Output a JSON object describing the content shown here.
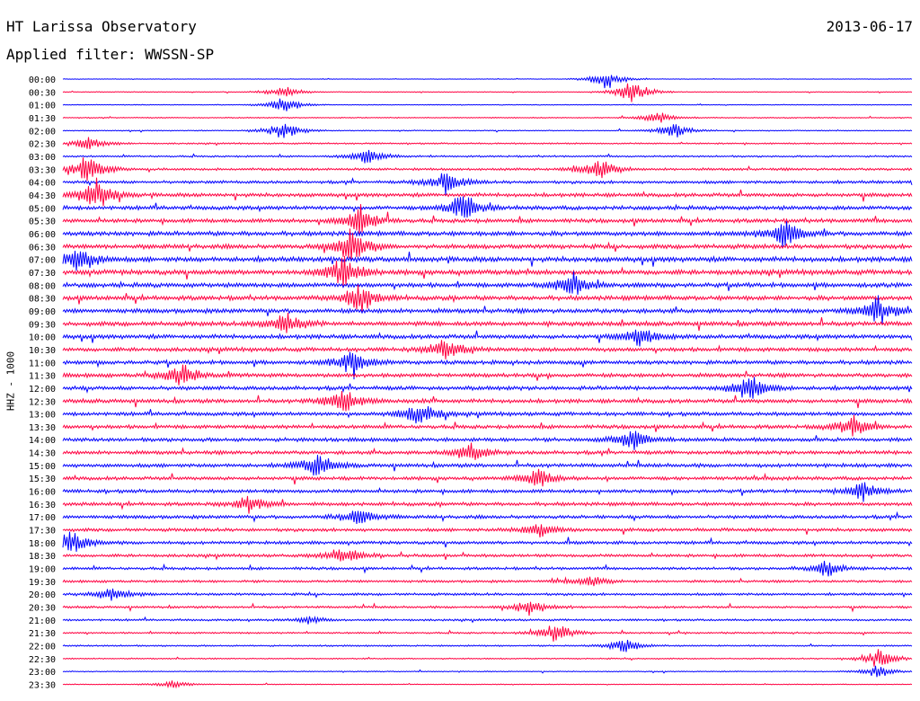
{
  "header": {
    "title": "HT Larissa Observatory",
    "date": "2013-06-17",
    "filter_label": "Applied filter: WWSSN-SP"
  },
  "chart_data": {
    "type": "line",
    "title": "HT Larissa Observatory",
    "ylabel": "HHZ - 1000",
    "row_labels": [
      "00:00",
      "00:30",
      "01:00",
      "01:30",
      "02:00",
      "02:30",
      "03:00",
      "03:30",
      "04:00",
      "04:30",
      "05:00",
      "05:30",
      "06:00",
      "06:30",
      "07:00",
      "07:30",
      "08:00",
      "08:30",
      "09:00",
      "09:30",
      "10:00",
      "10:30",
      "11:00",
      "11:30",
      "12:00",
      "12:30",
      "13:00",
      "13:30",
      "14:00",
      "14:30",
      "15:00",
      "15:30",
      "16:00",
      "16:30",
      "17:00",
      "17:30",
      "18:00",
      "18:30",
      "19:00",
      "19:30",
      "20:00",
      "20:30",
      "21:00",
      "21:30",
      "22:00",
      "22:30",
      "23:00",
      "23:30"
    ],
    "trace_colors": [
      "#0000ff",
      "#ff0040"
    ],
    "noise_level": [
      0.2,
      0.3,
      0.3,
      0.4,
      0.4,
      0.6,
      0.7,
      1.0,
      1.2,
      1.5,
      1.6,
      1.6,
      1.8,
      1.8,
      2.0,
      2.0,
      1.8,
      1.8,
      1.8,
      1.8,
      1.7,
      1.6,
      1.6,
      1.6,
      1.6,
      1.6,
      1.5,
      1.5,
      1.5,
      1.5,
      1.5,
      1.4,
      1.4,
      1.4,
      1.4,
      1.3,
      1.3,
      1.2,
      1.1,
      1.0,
      1.0,
      0.9,
      0.8,
      0.7,
      0.6,
      0.5,
      0.4,
      0.3
    ],
    "events": [
      {
        "row": 0,
        "pos": 0.64,
        "amp": 10
      },
      {
        "row": 1,
        "pos": 0.26,
        "amp": 6
      },
      {
        "row": 1,
        "pos": 0.67,
        "amp": 12
      },
      {
        "row": 2,
        "pos": 0.26,
        "amp": 8
      },
      {
        "row": 3,
        "pos": 0.7,
        "amp": 6
      },
      {
        "row": 4,
        "pos": 0.26,
        "amp": 10
      },
      {
        "row": 4,
        "pos": 0.72,
        "amp": 8
      },
      {
        "row": 5,
        "pos": 0.03,
        "amp": 8
      },
      {
        "row": 6,
        "pos": 0.36,
        "amp": 8
      },
      {
        "row": 7,
        "pos": 0.03,
        "amp": 14
      },
      {
        "row": 7,
        "pos": 0.63,
        "amp": 12
      },
      {
        "row": 8,
        "pos": 0.45,
        "amp": 12
      },
      {
        "row": 9,
        "pos": 0.04,
        "amp": 16
      },
      {
        "row": 10,
        "pos": 0.47,
        "amp": 14
      },
      {
        "row": 11,
        "pos": 0.35,
        "amp": 14
      },
      {
        "row": 12,
        "pos": 0.85,
        "amp": 14
      },
      {
        "row": 13,
        "pos": 0.34,
        "amp": 18
      },
      {
        "row": 14,
        "pos": 0.02,
        "amp": 14
      },
      {
        "row": 15,
        "pos": 0.33,
        "amp": 16
      },
      {
        "row": 16,
        "pos": 0.6,
        "amp": 12
      },
      {
        "row": 17,
        "pos": 0.35,
        "amp": 14
      },
      {
        "row": 18,
        "pos": 0.96,
        "amp": 14
      },
      {
        "row": 19,
        "pos": 0.26,
        "amp": 12
      },
      {
        "row": 20,
        "pos": 0.68,
        "amp": 10
      },
      {
        "row": 21,
        "pos": 0.45,
        "amp": 10
      },
      {
        "row": 22,
        "pos": 0.34,
        "amp": 12
      },
      {
        "row": 23,
        "pos": 0.14,
        "amp": 12
      },
      {
        "row": 24,
        "pos": 0.81,
        "amp": 14
      },
      {
        "row": 25,
        "pos": 0.33,
        "amp": 12
      },
      {
        "row": 26,
        "pos": 0.42,
        "amp": 12
      },
      {
        "row": 27,
        "pos": 0.93,
        "amp": 10
      },
      {
        "row": 28,
        "pos": 0.67,
        "amp": 12
      },
      {
        "row": 29,
        "pos": 0.48,
        "amp": 10
      },
      {
        "row": 30,
        "pos": 0.3,
        "amp": 12
      },
      {
        "row": 31,
        "pos": 0.56,
        "amp": 10
      },
      {
        "row": 32,
        "pos": 0.94,
        "amp": 10
      },
      {
        "row": 33,
        "pos": 0.22,
        "amp": 8
      },
      {
        "row": 34,
        "pos": 0.35,
        "amp": 10
      },
      {
        "row": 35,
        "pos": 0.56,
        "amp": 8
      },
      {
        "row": 36,
        "pos": 0.01,
        "amp": 12
      },
      {
        "row": 37,
        "pos": 0.33,
        "amp": 10
      },
      {
        "row": 38,
        "pos": 0.9,
        "amp": 8
      },
      {
        "row": 39,
        "pos": 0.62,
        "amp": 6
      },
      {
        "row": 40,
        "pos": 0.06,
        "amp": 8
      },
      {
        "row": 41,
        "pos": 0.55,
        "amp": 8
      },
      {
        "row": 42,
        "pos": 0.29,
        "amp": 4
      },
      {
        "row": 43,
        "pos": 0.58,
        "amp": 10
      },
      {
        "row": 44,
        "pos": 0.66,
        "amp": 8
      },
      {
        "row": 45,
        "pos": 0.96,
        "amp": 10
      },
      {
        "row": 46,
        "pos": 0.96,
        "amp": 6
      },
      {
        "row": 47,
        "pos": 0.13,
        "amp": 4
      }
    ]
  }
}
